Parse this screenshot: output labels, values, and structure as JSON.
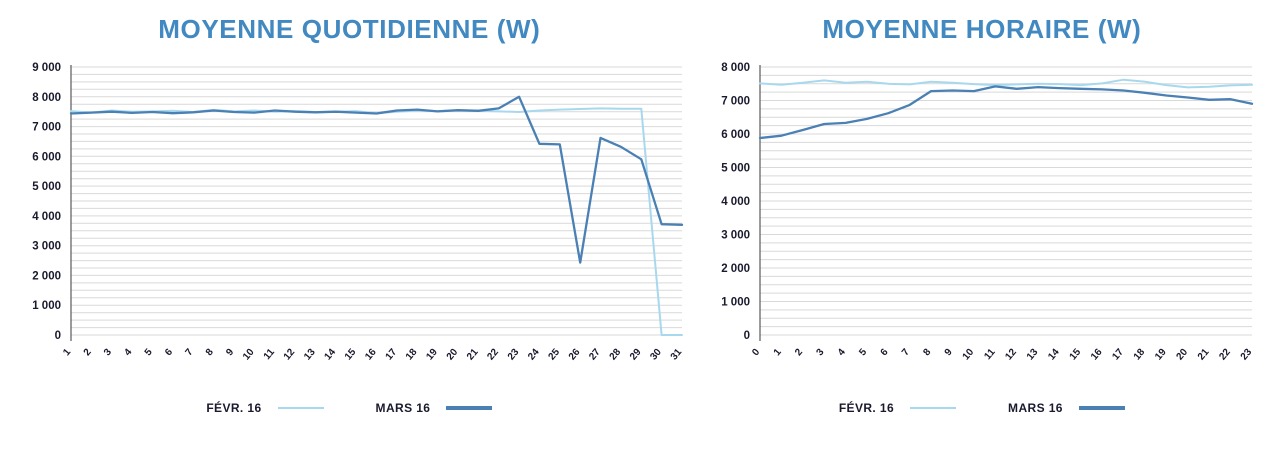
{
  "colors": {
    "title": "#4189c0",
    "text": "#1a1a2e",
    "grid": "#d9d9d9",
    "axis": "#595959"
  },
  "chart_data": [
    {
      "type": "line",
      "title": "MOYENNE QUOTIDIENNE (W)",
      "xlabel": "",
      "ylabel": "",
      "ylim": [
        0,
        9000
      ],
      "ytick_step": 1000,
      "minor_grid_step": 250,
      "grid": true,
      "legend_position": "bottom",
      "ytick_labels": [
        "0",
        "1 000",
        "2 000",
        "3 000",
        "4 000",
        "5 000",
        "6 000",
        "7 000",
        "8 000",
        "9 000"
      ],
      "categories": [
        "1",
        "2",
        "3",
        "4",
        "5",
        "6",
        "7",
        "8",
        "9",
        "10",
        "11",
        "12",
        "13",
        "14",
        "15",
        "16",
        "17",
        "18",
        "19",
        "20",
        "21",
        "22",
        "23",
        "24",
        "25",
        "26",
        "27",
        "28",
        "29",
        "30",
        "31"
      ],
      "series": [
        {
          "name": "FÉVR. 16",
          "color": "#a8d8ee",
          "values": [
            7520,
            7470,
            7540,
            7500,
            7510,
            7530,
            7490,
            7560,
            7510,
            7540,
            7500,
            7520,
            7490,
            7500,
            7520,
            7450,
            7500,
            7540,
            7520,
            7550,
            7530,
            7510,
            7490,
            7540,
            7570,
            7590,
            7610,
            7600,
            7600,
            0,
            0
          ]
        },
        {
          "name": "MARS 16",
          "color": "#4a80b4",
          "values": [
            7440,
            7470,
            7500,
            7460,
            7490,
            7450,
            7480,
            7540,
            7490,
            7470,
            7540,
            7500,
            7480,
            7500,
            7470,
            7440,
            7540,
            7570,
            7510,
            7550,
            7530,
            7610,
            8000,
            6420,
            6400,
            2430,
            6620,
            6320,
            5900,
            3720,
            3700
          ]
        }
      ]
    },
    {
      "type": "line",
      "title": "MOYENNE HORAIRE (W)",
      "xlabel": "",
      "ylabel": "",
      "ylim": [
        0,
        8000
      ],
      "ytick_step": 1000,
      "minor_grid_step": 250,
      "grid": true,
      "legend_position": "bottom",
      "ytick_labels": [
        "0",
        "1 000",
        "2 000",
        "3 000",
        "4 000",
        "5 000",
        "6 000",
        "7 000",
        "8 000"
      ],
      "categories": [
        "0",
        "1",
        "2",
        "3",
        "4",
        "5",
        "6",
        "7",
        "8",
        "9",
        "10",
        "11",
        "12",
        "13",
        "14",
        "15",
        "16",
        "17",
        "18",
        "19",
        "20",
        "21",
        "22",
        "23"
      ],
      "series": [
        {
          "name": "FÉVR. 16",
          "color": "#a8d8ee",
          "values": [
            7510,
            7470,
            7530,
            7600,
            7530,
            7560,
            7500,
            7480,
            7560,
            7530,
            7490,
            7460,
            7480,
            7500,
            7490,
            7460,
            7510,
            7620,
            7560,
            7460,
            7390,
            7410,
            7450,
            7470
          ]
        },
        {
          "name": "MARS 16",
          "color": "#4a80b4",
          "values": [
            5880,
            5950,
            6120,
            6300,
            6330,
            6450,
            6620,
            6870,
            7280,
            7300,
            7280,
            7420,
            7350,
            7400,
            7370,
            7350,
            7330,
            7300,
            7230,
            7150,
            7090,
            7020,
            7040,
            6900
          ]
        }
      ]
    }
  ]
}
